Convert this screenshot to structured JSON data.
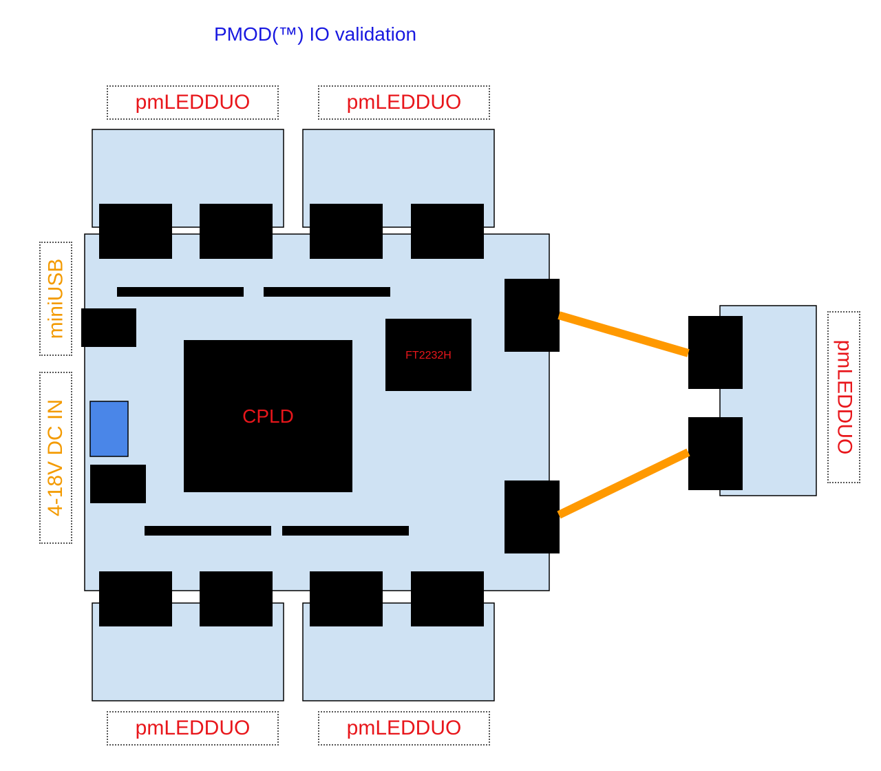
{
  "title": "PMOD(™) IO validation",
  "labels": {
    "top_left_module": "pmLEDDUO",
    "top_right_module": "pmLEDDUO",
    "bottom_left_module": "pmLEDDUO",
    "bottom_right_module": "pmLEDDUO",
    "side_module": "pmLEDDUO",
    "mini_usb": "miniUSB",
    "dc_in": "4-18V DC IN"
  },
  "chips": {
    "cpld": "CPLD",
    "ft2232h": "FT2232H"
  },
  "colors": {
    "title": "#1818e0",
    "module_label": "#e8161b",
    "power_label": "#f39a00",
    "board_fill": "#cfe2f3",
    "component": "#000000",
    "switch": "#4a86e8",
    "cable": "#ff9900"
  }
}
